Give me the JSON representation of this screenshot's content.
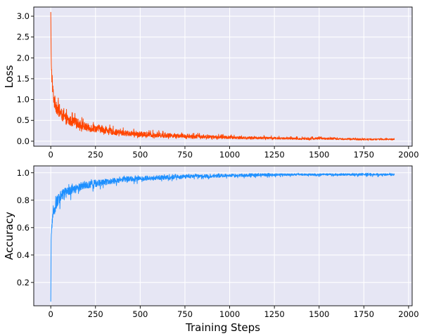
{
  "chart_data": [
    {
      "type": "line",
      "name": "loss-panel",
      "xlabel": "",
      "ylabel": "Loss",
      "xlim": [
        -95,
        2020
      ],
      "ylim": [
        -0.12,
        3.22
      ],
      "xticks": [
        0,
        250,
        500,
        750,
        1000,
        1250,
        1500,
        1750,
        2000
      ],
      "yticks": [
        0.0,
        0.5,
        1.0,
        1.5,
        2.0,
        2.5,
        3.0
      ],
      "ytick_labels": [
        "0.0",
        "0.5",
        "1.0",
        "1.5",
        "2.0",
        "2.5",
        "3.0"
      ],
      "grid": true,
      "series": [
        {
          "color": "#ff4500",
          "x": [
            0,
            2,
            5,
            10,
            20,
            40,
            70,
            100,
            150,
            200,
            250,
            300,
            350,
            400,
            500,
            600,
            700,
            800,
            900,
            1000,
            1100,
            1200,
            1300,
            1400,
            1500,
            1600,
            1700,
            1800,
            1920
          ],
          "y": [
            3.1,
            2.0,
            1.6,
            1.2,
            0.9,
            0.7,
            0.55,
            0.45,
            0.4,
            0.3,
            0.28,
            0.25,
            0.2,
            0.18,
            0.15,
            0.13,
            0.12,
            0.1,
            0.09,
            0.08,
            0.07,
            0.07,
            0.06,
            0.05,
            0.06,
            0.05,
            0.04,
            0.04,
            0.04
          ],
          "noise": [
            0,
            0.3,
            0.35,
            0.35,
            0.35,
            0.3,
            0.28,
            0.25,
            0.22,
            0.2,
            0.18,
            0.16,
            0.14,
            0.13,
            0.12,
            0.11,
            0.1,
            0.09,
            0.08,
            0.07,
            0.06,
            0.06,
            0.05,
            0.05,
            0.05,
            0.04,
            0.04,
            0.04,
            0.03
          ]
        }
      ]
    },
    {
      "type": "line",
      "name": "accuracy-panel",
      "xlabel": "Training Steps",
      "ylabel": "Accuracy",
      "xlim": [
        -95,
        2020
      ],
      "ylim": [
        0.03,
        1.05
      ],
      "xticks": [
        0,
        250,
        500,
        750,
        1000,
        1250,
        1500,
        1750,
        2000
      ],
      "yticks": [
        0.2,
        0.4,
        0.6,
        0.8,
        1.0
      ],
      "ytick_labels": [
        "0.2",
        "0.4",
        "0.6",
        "0.8",
        "1.0"
      ],
      "grid": true,
      "series": [
        {
          "color": "#1e90ff",
          "x": [
            0,
            2,
            5,
            10,
            20,
            40,
            70,
            100,
            150,
            200,
            250,
            300,
            350,
            400,
            500,
            600,
            700,
            800,
            900,
            1000,
            1100,
            1200,
            1300,
            1400,
            1500,
            1600,
            1700,
            1800,
            1920
          ],
          "y": [
            0.06,
            0.5,
            0.6,
            0.68,
            0.75,
            0.82,
            0.86,
            0.88,
            0.9,
            0.92,
            0.93,
            0.94,
            0.95,
            0.96,
            0.965,
            0.97,
            0.975,
            0.98,
            0.98,
            0.985,
            0.985,
            0.99,
            0.99,
            0.99,
            0.99,
            0.99,
            0.99,
            0.99,
            0.99
          ],
          "noise": [
            0,
            0.1,
            0.1,
            0.1,
            0.1,
            0.09,
            0.08,
            0.07,
            0.06,
            0.05,
            0.05,
            0.045,
            0.04,
            0.04,
            0.035,
            0.03,
            0.03,
            0.025,
            0.025,
            0.02,
            0.02,
            0.02,
            0.015,
            0.015,
            0.015,
            0.015,
            0.015,
            0.015,
            0.015
          ]
        }
      ]
    }
  ]
}
